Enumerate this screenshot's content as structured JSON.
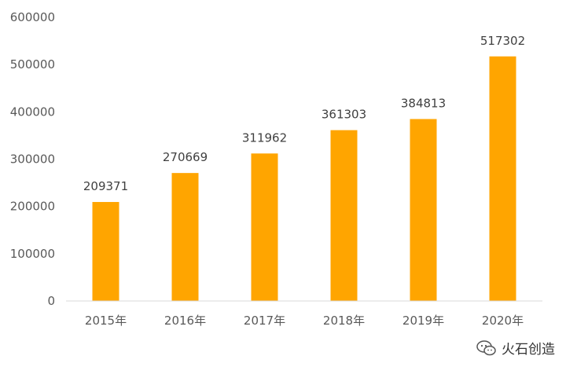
{
  "chart_data": {
    "type": "bar",
    "categories": [
      "2015年",
      "2016年",
      "2017年",
      "2018年",
      "2019年",
      "2020年"
    ],
    "values": [
      209371,
      270669,
      311962,
      361303,
      384813,
      517302
    ],
    "data_labels": [
      "209371",
      "270669",
      "311962",
      "361303",
      "384813",
      "517302"
    ],
    "title": "",
    "xlabel": "",
    "ylabel": "",
    "ylim": [
      0,
      600000
    ],
    "yticks": [
      0,
      100000,
      200000,
      300000,
      400000,
      500000,
      600000
    ],
    "ytick_labels": [
      "0",
      "100000",
      "200000",
      "300000",
      "400000",
      "500000",
      "600000"
    ],
    "grid": false,
    "legend": "none",
    "bar_color": "#FFA500",
    "axis_color": "#D9D9D9"
  },
  "watermark": {
    "text": "火石创造",
    "icon": "wechat-icon"
  }
}
